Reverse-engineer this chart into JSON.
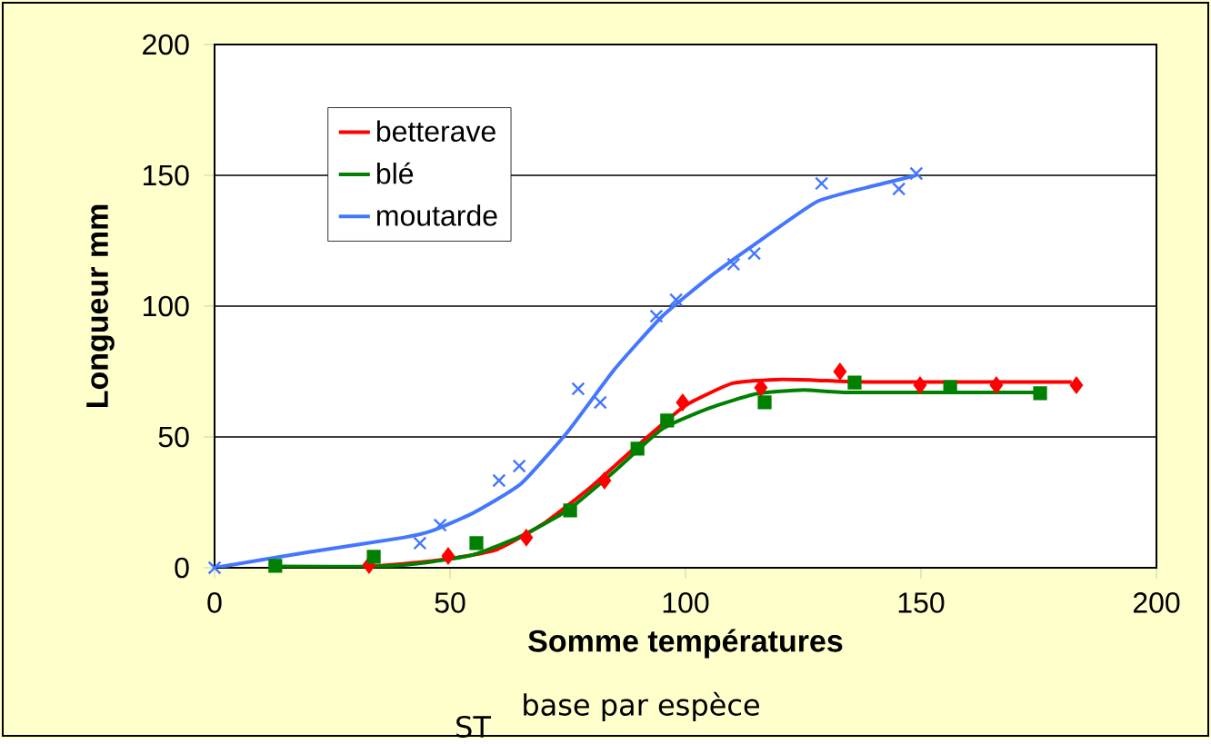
{
  "chart_data": {
    "type": "line",
    "xlabel": "Somme températures",
    "ylabel": "Longueur mm",
    "annotations": [
      "base par espèce",
      "ST"
    ],
    "xlim": [
      0,
      200
    ],
    "ylim": [
      0,
      200
    ],
    "xticks": [
      0,
      50,
      100,
      150,
      200
    ],
    "yticks": [
      0,
      50,
      100,
      150,
      200
    ],
    "grid": "y",
    "legend": "top left",
    "series": [
      {
        "name": "betterave",
        "color": "#ff0000",
        "marker": "none",
        "x": [
          30,
          40,
          50,
          60,
          70,
          80,
          90,
          100,
          110,
          120,
          130,
          140,
          182
        ],
        "values": [
          0,
          1.5,
          3.5,
          7,
          17,
          31,
          47,
          62,
          70.5,
          72,
          71.5,
          71,
          71
        ]
      },
      {
        "name": "blé",
        "color": "#008000",
        "marker": "none",
        "x": [
          12.9,
          35,
          45,
          55,
          65,
          75,
          85,
          95,
          105,
          115,
          125,
          135,
          175
        ],
        "values": [
          0.5,
          0.5,
          2,
          5,
          12,
          22,
          37,
          53,
          61,
          66.5,
          68,
          67,
          67
        ]
      },
      {
        "name": "moutarde",
        "color": "#4477ff",
        "marker": "none",
        "x": [
          0,
          20,
          40,
          46,
          55,
          65,
          75,
          85,
          95,
          105,
          115,
          128,
          140,
          149
        ],
        "values": [
          0,
          6,
          11.5,
          14,
          21,
          32,
          52,
          76,
          96,
          111,
          124,
          140,
          146,
          150
        ]
      },
      {
        "color": "#ff0000",
        "type": "scatter",
        "marker": "diamond",
        "x": [
          32.8,
          49.6,
          66.2,
          82.8,
          99.4,
          116,
          132.8,
          149.8,
          166,
          183
        ],
        "values": [
          1,
          4.5,
          11.5,
          33.3,
          63.2,
          68.8,
          75,
          69.8,
          69.8,
          69.8
        ]
      },
      {
        "color": "#008000",
        "type": "scatter",
        "marker": "square",
        "x": [
          12.9,
          33.8,
          55.6,
          75.5,
          89.8,
          96.1,
          116.8,
          135.9,
          156.2,
          175.3
        ],
        "values": [
          0.7,
          4.2,
          9.4,
          21.9,
          45.5,
          56.3,
          63.2,
          70.8,
          69.1,
          66.7
        ]
      },
      {
        "color": "#4477ff",
        "type": "scatter",
        "marker": "cross",
        "x": [
          0,
          43.6,
          47.9,
          60.4,
          64.7,
          77.2,
          81.9,
          93.8,
          98,
          110.2,
          114.6,
          128.9,
          145.3,
          149
        ],
        "values": [
          0,
          9.4,
          16.3,
          33.3,
          38.9,
          68.4,
          63.2,
          96.2,
          102.4,
          116,
          120.1,
          146.9,
          144.8,
          150.7
        ]
      }
    ]
  }
}
